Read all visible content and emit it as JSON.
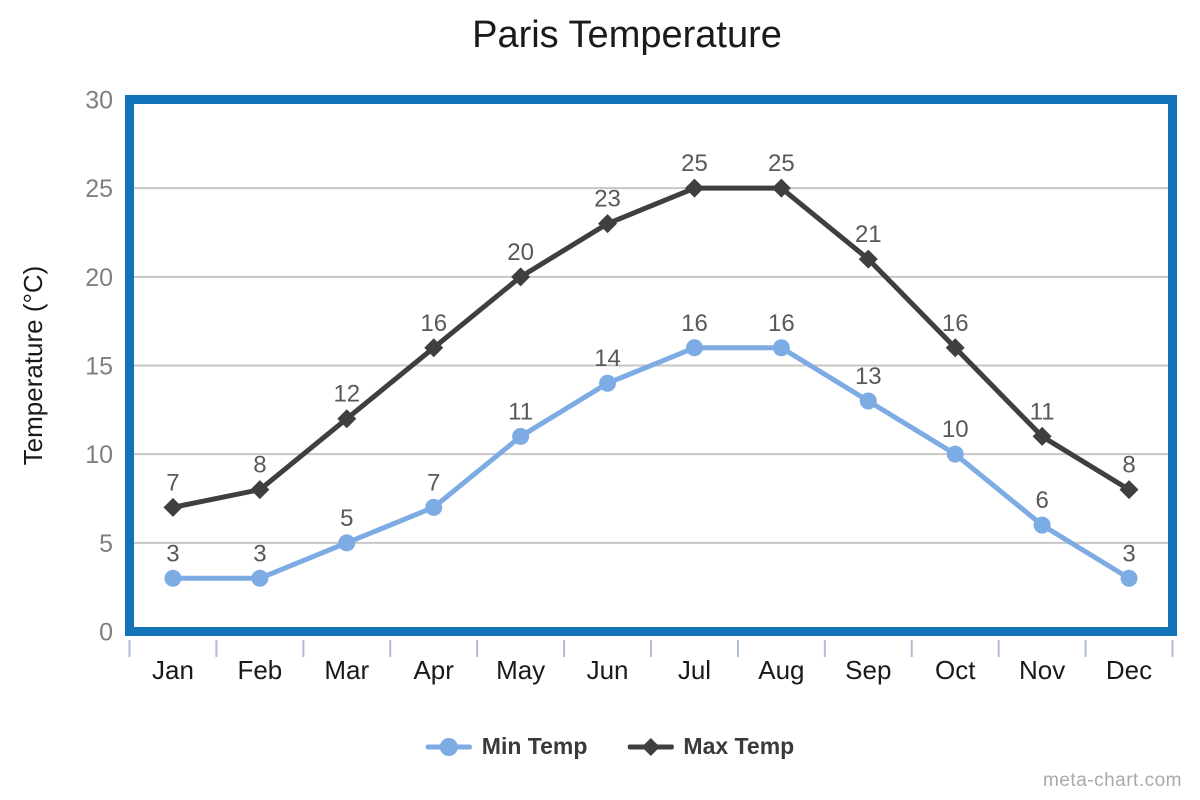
{
  "title": "Paris Temperature",
  "watermark": "meta-chart.com",
  "chart_data": {
    "type": "line",
    "title": "Paris Temperature",
    "categories": [
      "Jan",
      "Feb",
      "Mar",
      "Apr",
      "May",
      "Jun",
      "Jul",
      "Aug",
      "Sep",
      "Oct",
      "Nov",
      "Dec"
    ],
    "series": [
      {
        "name": "Min Temp",
        "values": [
          3,
          3,
          5,
          7,
          11,
          14,
          16,
          16,
          13,
          10,
          6,
          3
        ],
        "color": "#7CACE3",
        "marker": "circle"
      },
      {
        "name": "Max Temp",
        "values": [
          7,
          8,
          12,
          16,
          20,
          23,
          25,
          25,
          21,
          16,
          11,
          8
        ],
        "color": "#3F3F41",
        "marker": "diamond"
      }
    ],
    "xlabel": "",
    "ylabel": "Temperature (°C)",
    "ylim": [
      0,
      30
    ],
    "ytick_step": 5,
    "grid": true,
    "data_labels": true,
    "legend_position": "bottom"
  },
  "style": {
    "plot_border_color": "#1273B8",
    "gridline_color": "#C7C7C7",
    "tick_color": "#AEBDD3",
    "ytick_label_color": "#7F7F7F",
    "xtick_label_color": "#1A1A1A",
    "data_label_color": "#58595B",
    "axis_title_color": "#1A1A1A",
    "title_color": "#1A1A1A",
    "legend_text_color": "#3A3A3A",
    "watermark_color": "#A9A9A9",
    "background": "#FFFFFF"
  }
}
